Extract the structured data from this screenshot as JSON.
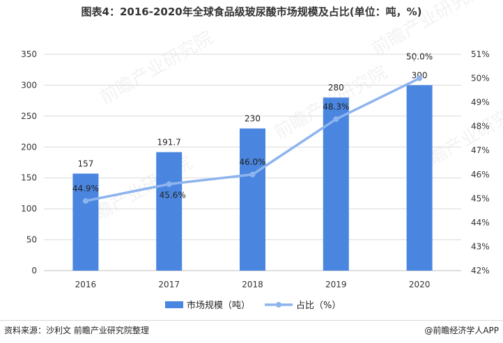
{
  "title": "图表4：2016-2020年全球食品级玻尿酸市场规模及占比(单位：吨，%)",
  "source": "资料来源：沙利文 前瞻产业研究院整理",
  "brand": "@前瞻经济学人APP",
  "watermark": "前瞻产业研究院",
  "colors": {
    "bar": "#4a86e0",
    "line": "#8db4ee",
    "grid": "#d9d9d9",
    "axis": "#bfbfbf"
  },
  "chart_data": {
    "type": "bar",
    "categories": [
      "2016",
      "2017",
      "2018",
      "2019",
      "2020"
    ],
    "series": [
      {
        "name": "市场规模（吨）",
        "type": "bar",
        "axis": "left",
        "values": [
          157,
          191.7,
          230,
          280,
          300
        ],
        "labels": [
          "157",
          "191.7",
          "230",
          "280",
          "300"
        ]
      },
      {
        "name": "占比（%）",
        "type": "line",
        "axis": "right",
        "values": [
          44.9,
          45.6,
          46.0,
          48.3,
          50.0
        ],
        "labels": [
          "44.9%",
          "45.6%",
          "46.0%",
          "48.3%",
          "50.0%"
        ]
      }
    ],
    "left_axis": {
      "ylim": [
        0,
        350
      ],
      "ticks": [
        "0",
        "50",
        "100",
        "150",
        "200",
        "250",
        "300",
        "350"
      ]
    },
    "right_axis": {
      "ylim": [
        42,
        51
      ],
      "ticks": [
        "42%",
        "43%",
        "44%",
        "45%",
        "46%",
        "47%",
        "48%",
        "49%",
        "50%",
        "51%"
      ]
    },
    "grid": true,
    "legend_position": "bottom-center"
  }
}
